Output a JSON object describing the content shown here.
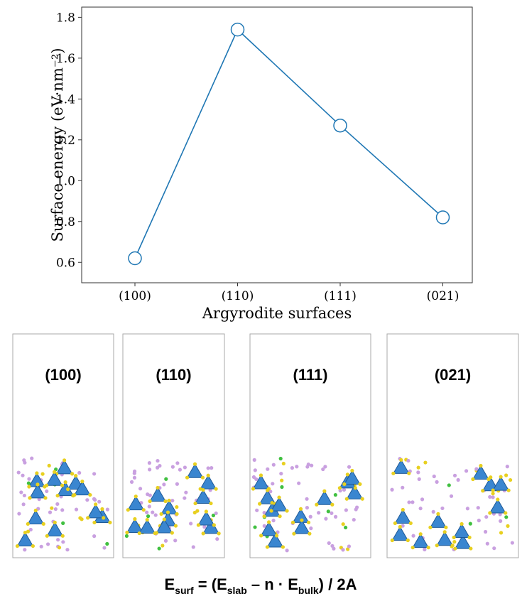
{
  "chart_data": {
    "type": "line",
    "categories": [
      "(100)",
      "(110)",
      "(111)",
      "(021)"
    ],
    "series": [
      {
        "color": "#1f77b4",
        "values": [
          0.62,
          1.74,
          1.27,
          0.82
        ]
      }
    ],
    "xlabel": "Argyrodite surfaces",
    "ylabel": "Surface energy (eV·nm⁻²)",
    "ylim": [
      0.5,
      1.85
    ],
    "yticks": [
      0.6,
      0.8,
      {
        "value": 1.0,
        "label": "1.0"
      },
      1.2,
      1.4,
      1.6,
      1.8
    ]
  },
  "panels": [
    "(100)",
    "(110)",
    "(111)",
    "(021)"
  ],
  "formula": [
    "E",
    "surf",
    " = (E",
    "slab",
    " – n · E",
    "bulk",
    ") / 2A"
  ]
}
